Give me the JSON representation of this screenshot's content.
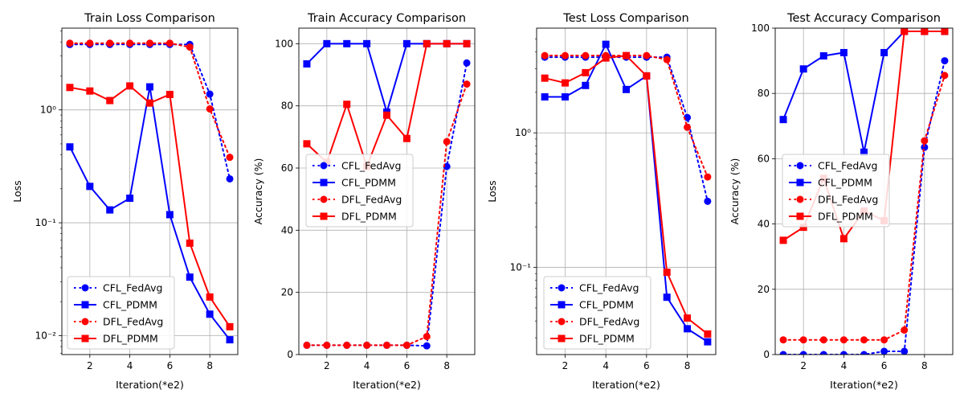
{
  "chart_data": [
    {
      "type": "line",
      "title": "Train Loss Comparison",
      "xlabel": "Iteration(*e2)",
      "ylabel": "Loss",
      "yscale": "log",
      "xlim": [
        0.6,
        9.4
      ],
      "ylim": [
        0.0068,
        5.3
      ],
      "xticks": [
        2,
        4,
        6,
        8
      ],
      "yticks": [
        0.01,
        0.1,
        1
      ],
      "ytick_labels": [
        "10⁻²",
        "10⁻¹",
        "10⁰"
      ],
      "grid": true,
      "legend_position": "lower-left",
      "x": [
        1,
        2,
        3,
        4,
        5,
        6,
        7,
        8,
        9
      ],
      "series": [
        {
          "name": "CFL_FedAvg",
          "values": [
            3.8,
            3.8,
            3.8,
            3.8,
            3.8,
            3.8,
            3.8,
            1.38,
            0.245
          ]
        },
        {
          "name": "CFL_PDMM",
          "values": [
            0.47,
            0.21,
            0.13,
            0.165,
            1.6,
            0.118,
            0.033,
            0.0155,
            0.0092
          ]
        },
        {
          "name": "DFL_FedAvg",
          "values": [
            3.9,
            3.9,
            3.9,
            3.9,
            3.9,
            3.9,
            3.6,
            1.02,
            0.38
          ]
        },
        {
          "name": "DFL_PDMM",
          "values": [
            1.58,
            1.47,
            1.21,
            1.63,
            1.15,
            1.37,
            0.066,
            0.022,
            0.012
          ]
        }
      ]
    },
    {
      "type": "line",
      "title": "Train Accuracy Comparison",
      "xlabel": "Iteration(*e2)",
      "ylabel": "Accuracy (%)",
      "yscale": "linear",
      "xlim": [
        0.6,
        9.4
      ],
      "ylim": [
        0,
        105
      ],
      "xticks": [
        2,
        4,
        6,
        8
      ],
      "yticks": [
        0,
        20,
        40,
        60,
        80,
        100
      ],
      "ytick_labels": [
        "0",
        "20",
        "40",
        "60",
        "80",
        "100"
      ],
      "grid": true,
      "legend_position": "center-left",
      "x": [
        1,
        2,
        3,
        4,
        5,
        6,
        7,
        8,
        9
      ],
      "series": [
        {
          "name": "CFL_FedAvg",
          "values": [
            3,
            3,
            3,
            3,
            3,
            3,
            2.8,
            60.5,
            93.8
          ]
        },
        {
          "name": "CFL_PDMM",
          "values": [
            93.5,
            100,
            100,
            100,
            78,
            100,
            100,
            100,
            100
          ]
        },
        {
          "name": "DFL_FedAvg",
          "values": [
            3,
            3,
            3,
            3,
            3,
            3,
            5.8,
            68.5,
            87
          ]
        },
        {
          "name": "DFL_PDMM",
          "values": [
            67.8,
            61.8,
            80.5,
            60.5,
            77,
            69.5,
            100,
            100,
            100
          ]
        }
      ]
    },
    {
      "type": "line",
      "title": "Test Loss Comparison",
      "xlabel": "Iteration(*e2)",
      "ylabel": "Loss",
      "yscale": "log",
      "xlim": [
        0.6,
        9.4
      ],
      "ylim": [
        0.0225,
        6.0
      ],
      "xticks": [
        2,
        4,
        6,
        8
      ],
      "yticks": [
        0.1,
        1
      ],
      "ytick_labels": [
        "10⁻¹",
        "10⁰"
      ],
      "grid": true,
      "legend_position": "lower-left",
      "x": [
        1,
        2,
        3,
        4,
        5,
        6,
        7,
        8,
        9
      ],
      "series": [
        {
          "name": "CFL_FedAvg",
          "values": [
            3.65,
            3.65,
            3.65,
            3.65,
            3.65,
            3.65,
            3.65,
            1.3,
            0.31
          ]
        },
        {
          "name": "CFL_PDMM",
          "values": [
            1.85,
            1.85,
            2.25,
            4.55,
            2.1,
            2.65,
            0.06,
            0.035,
            0.028
          ]
        },
        {
          "name": "DFL_FedAvg",
          "values": [
            3.75,
            3.75,
            3.75,
            3.75,
            3.75,
            3.75,
            3.5,
            1.1,
            0.47
          ]
        },
        {
          "name": "DFL_PDMM",
          "values": [
            2.55,
            2.35,
            2.8,
            3.6,
            3.75,
            2.65,
            0.092,
            0.042,
            0.032
          ]
        }
      ]
    },
    {
      "type": "line",
      "title": "Test Accuracy Comparison",
      "xlabel": "Iteration(*e2)",
      "ylabel": "Accuracy (%)",
      "yscale": "linear",
      "xlim": [
        0.6,
        9.4
      ],
      "ylim": [
        0,
        100
      ],
      "xticks": [
        2,
        4,
        6,
        8
      ],
      "yticks": [
        0,
        20,
        40,
        60,
        80,
        100
      ],
      "ytick_labels": [
        "0",
        "20",
        "40",
        "60",
        "80",
        "100"
      ],
      "grid": true,
      "legend_position": "center-left",
      "x": [
        1,
        2,
        3,
        4,
        5,
        6,
        7,
        8,
        9
      ],
      "series": [
        {
          "name": "CFL_FedAvg",
          "values": [
            0,
            0,
            0,
            0,
            0,
            1,
            1,
            63.5,
            90
          ]
        },
        {
          "name": "CFL_PDMM",
          "values": [
            72,
            87.5,
            91.5,
            92.5,
            62,
            92.5,
            99,
            99,
            99
          ]
        },
        {
          "name": "DFL_FedAvg",
          "values": [
            4.5,
            4.5,
            4.5,
            4.5,
            4.5,
            4.5,
            7.5,
            65.5,
            85.5
          ]
        },
        {
          "name": "DFL_PDMM",
          "values": [
            35,
            39,
            54,
            35.5,
            44,
            41,
            99,
            99,
            99
          ]
        }
      ]
    }
  ],
  "series_styles": {
    "CFL_FedAvg": {
      "color": "#0000ff",
      "dash": "dotted",
      "marker": "circle"
    },
    "CFL_PDMM": {
      "color": "#0000ff",
      "dash": "solid",
      "marker": "square"
    },
    "DFL_FedAvg": {
      "color": "#ff0000",
      "dash": "dotted",
      "marker": "circle"
    },
    "DFL_PDMM": {
      "color": "#ff0000",
      "dash": "solid",
      "marker": "square"
    }
  }
}
